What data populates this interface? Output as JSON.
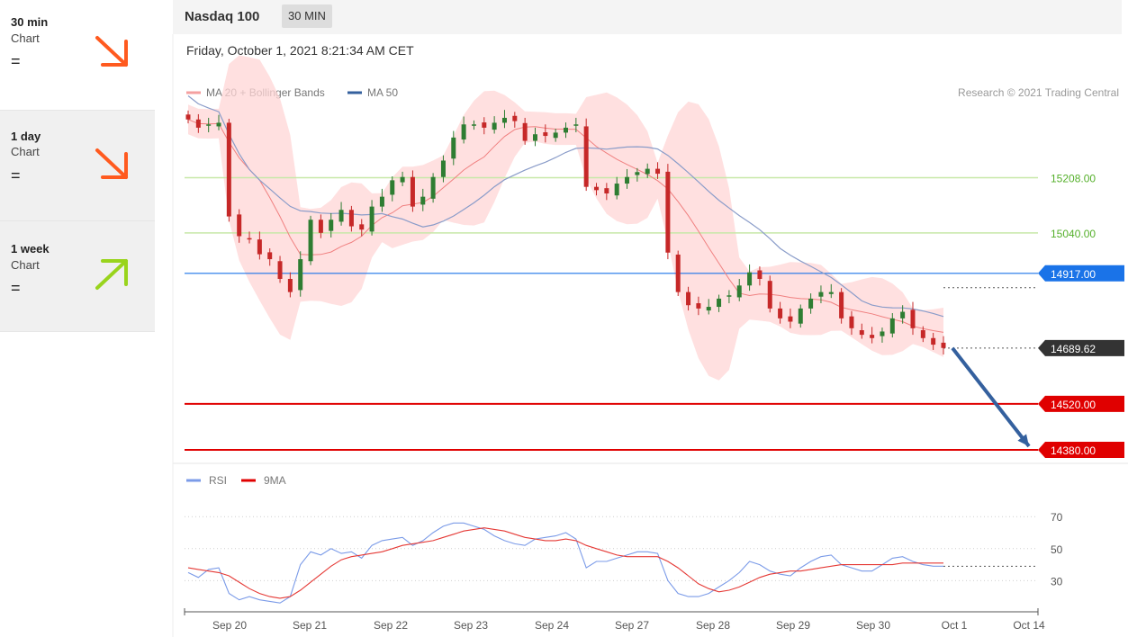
{
  "sidebar": {
    "items": [
      {
        "timeframe": "30 min",
        "kind": "Chart",
        "symbol": "=",
        "direction": "down",
        "color": "#ff5a1f"
      },
      {
        "timeframe": "1 day",
        "kind": "Chart",
        "symbol": "=",
        "direction": "down",
        "color": "#ff5a1f"
      },
      {
        "timeframe": "1 week",
        "kind": "Chart",
        "symbol": "=",
        "direction": "up",
        "color": "#99d41d"
      }
    ]
  },
  "header": {
    "instrument": "Nasdaq 100",
    "period": "30 MIN"
  },
  "datetime": "Friday, October 1, 2021 8:21:34 AM CET",
  "legend": {
    "ma20": "MA 20 + Bollinger Bands",
    "ma50": "MA 50",
    "copyright": "Research © 2021 Trading Central"
  },
  "rsi_legend": {
    "rsi": "RSI",
    "ma9": "9MA"
  },
  "colors": {
    "resistance": "#c7e8a8",
    "resistance_text": "#55b02b",
    "pivot": "#1a73e8",
    "support": "#e00000",
    "last": "#333333",
    "up": "#2e7d32",
    "down": "#c62828",
    "bands": "#ffd6d6",
    "ma20": "#f08080",
    "ma50": "#8a9cc9",
    "arrow": "#34609e",
    "rsi": "#7b9be8",
    "ma9": "#e53935"
  },
  "chart_data": [
    {
      "type": "candlestick",
      "title": "Nasdaq 100",
      "x_tick_labels": [
        "Sep 20",
        "Sep 21",
        "Sep 22",
        "Sep 23",
        "Sep 24",
        "Sep 27",
        "Sep 28",
        "Sep 29",
        "Sep 30",
        "Oct 1",
        "Oct 14"
      ],
      "levels": [
        {
          "value": 15208.0,
          "label": "15208.00",
          "kind": "resistance"
        },
        {
          "value": 15040.0,
          "label": "15040.00",
          "kind": "resistance"
        },
        {
          "value": 14917.0,
          "label": "14917.00",
          "kind": "pivot"
        },
        {
          "value": 14689.62,
          "label": "14689.62",
          "kind": "last"
        },
        {
          "value": 14520.0,
          "label": "14520.00",
          "kind": "support"
        },
        {
          "value": 14380.0,
          "label": "14380.00",
          "kind": "support"
        }
      ],
      "forecast": {
        "from": 14689.62,
        "to": 14380.0,
        "direction": "down"
      },
      "series": [
        {
          "name": "MA 20 + Bollinger Bands",
          "kind": "ma20_with_bands"
        },
        {
          "name": "MA 50",
          "kind": "ma50"
        },
        {
          "name": "Price",
          "kind": "ohlc",
          "closes": [
            15385,
            15360,
            15370,
            15375,
            15090,
            15030,
            15020,
            14975,
            14960,
            14900,
            14860,
            14960,
            15080,
            15040,
            15080,
            15110,
            15060,
            15050,
            15120,
            15150,
            15200,
            15210,
            15120,
            15150,
            15210,
            15260,
            15330,
            15370,
            15370,
            15360,
            15375,
            15390,
            15380,
            15320,
            15340,
            15335,
            15345,
            15360,
            15370,
            15180,
            15170,
            15160,
            15190,
            15210,
            15225,
            15235,
            15220,
            14980,
            14860,
            14820,
            14810,
            14815,
            14840,
            14850,
            14880,
            14920,
            14900,
            14810,
            14780,
            14770,
            14810,
            14840,
            14860,
            14860,
            14780,
            14750,
            14730,
            14720,
            14740,
            14780,
            14800,
            14750,
            14720,
            14700,
            14690
          ]
        }
      ],
      "ylim": [
        14380,
        15420
      ]
    },
    {
      "type": "line",
      "title": "RSI",
      "y_ticks": [
        70,
        50,
        30
      ],
      "ylim": [
        15,
        78
      ],
      "series": [
        {
          "name": "RSI",
          "values": [
            35,
            32,
            37,
            38,
            22,
            18,
            20,
            18,
            17,
            16,
            20,
            40,
            48,
            46,
            50,
            47,
            48,
            44,
            52,
            55,
            56,
            57,
            52,
            55,
            60,
            64,
            66,
            66,
            64,
            62,
            58,
            55,
            53,
            52,
            56,
            57,
            58,
            60,
            56,
            38,
            42,
            42,
            44,
            46,
            48,
            48,
            47,
            30,
            22,
            20,
            20,
            22,
            26,
            30,
            35,
            42,
            40,
            36,
            34,
            33,
            38,
            42,
            45,
            46,
            40,
            38,
            36,
            36,
            40,
            44,
            45,
            42,
            40,
            39,
            39
          ]
        },
        {
          "name": "9MA",
          "values": [
            38,
            37,
            36,
            35,
            33,
            29,
            25,
            22,
            20,
            19,
            20,
            24,
            29,
            34,
            39,
            43,
            45,
            46,
            47,
            48,
            50,
            52,
            53,
            54,
            55,
            57,
            59,
            61,
            62,
            63,
            62,
            61,
            59,
            57,
            56,
            55,
            55,
            56,
            55,
            52,
            50,
            48,
            46,
            45,
            45,
            45,
            45,
            42,
            38,
            33,
            28,
            25,
            23,
            24,
            26,
            29,
            32,
            34,
            35,
            36,
            36,
            37,
            38,
            39,
            40,
            40,
            40,
            40,
            40,
            40,
            41,
            41,
            41,
            41,
            41
          ]
        }
      ]
    }
  ]
}
